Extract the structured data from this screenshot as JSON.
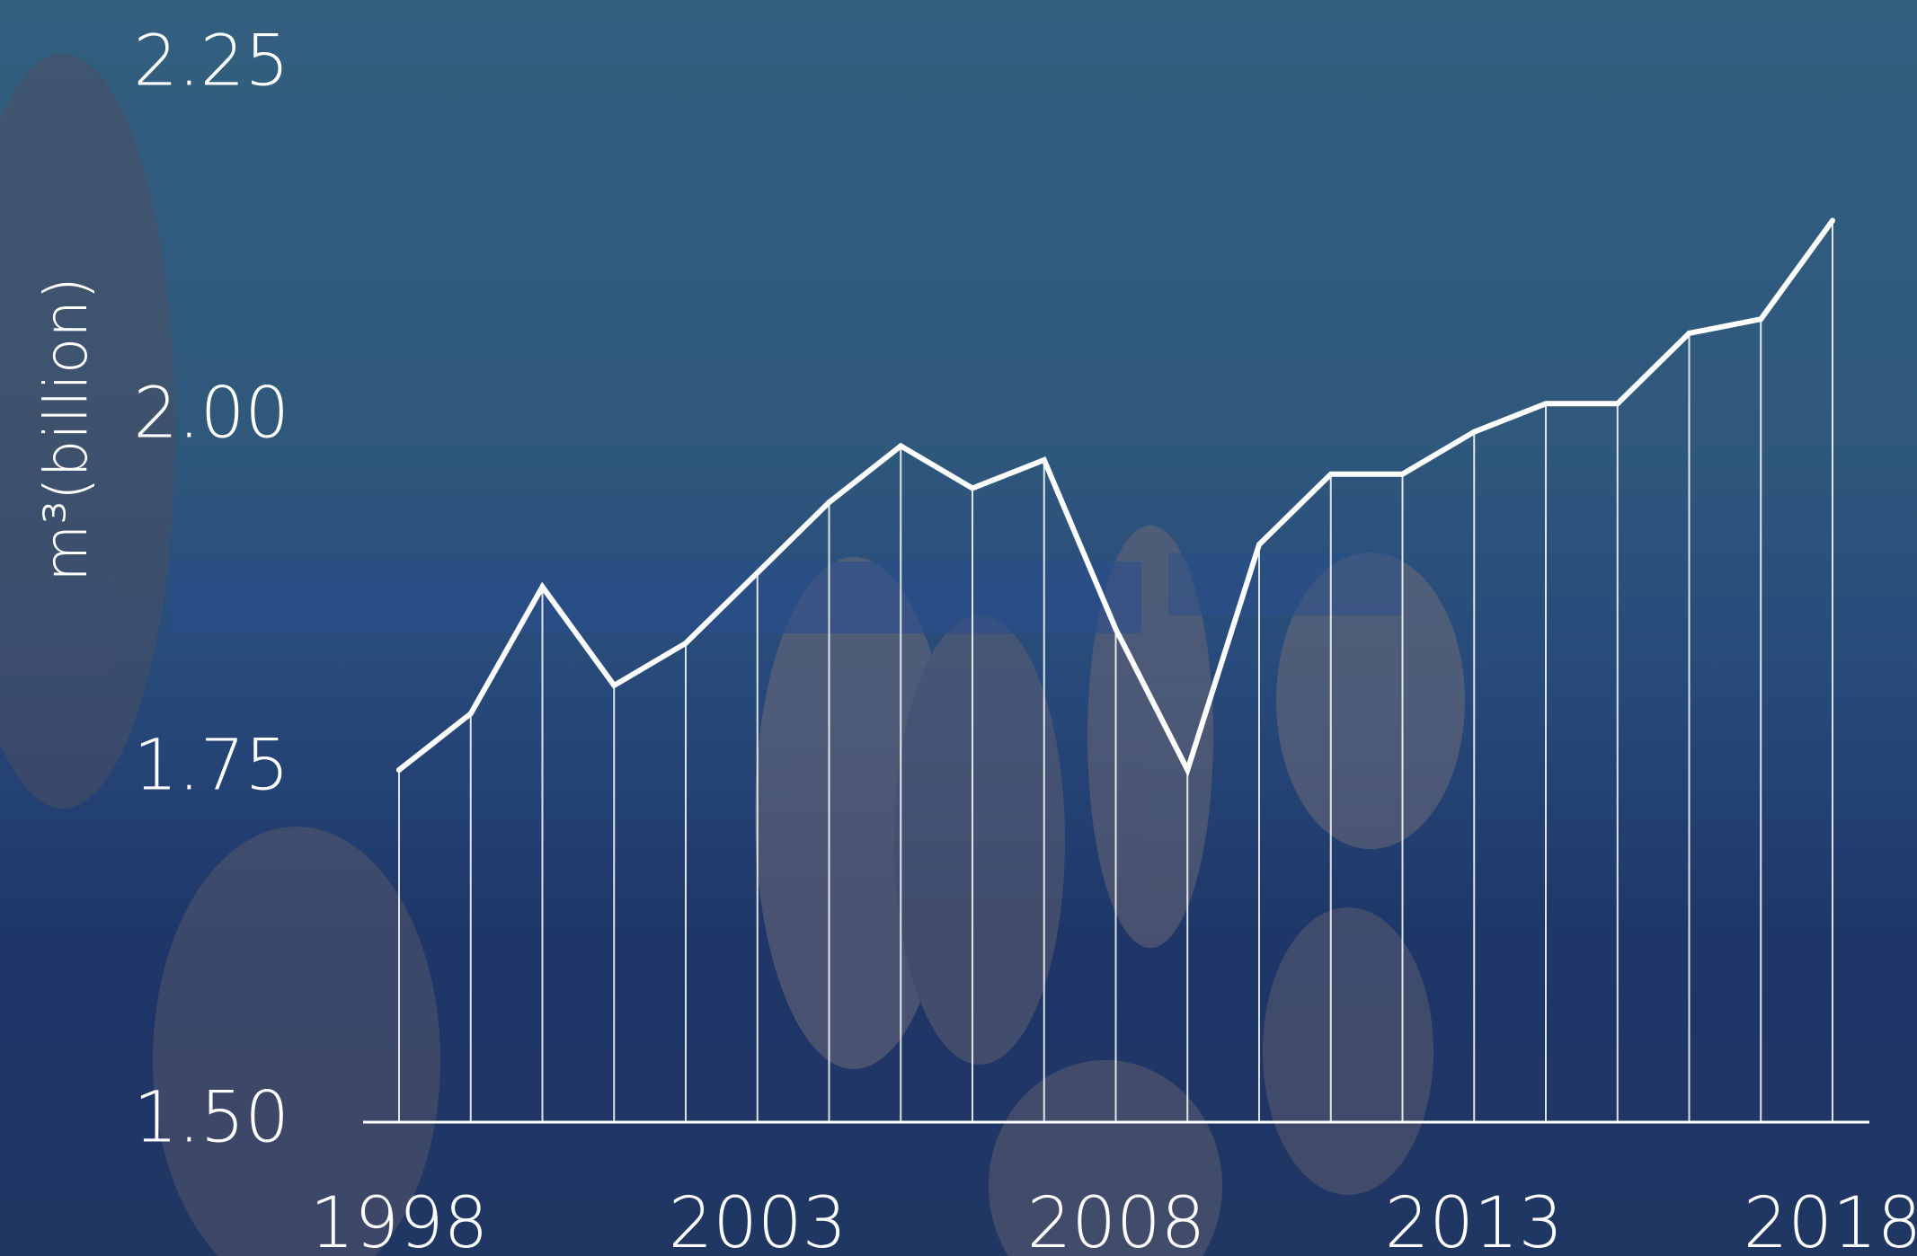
{
  "colors": {
    "line": "#ffffff",
    "background_top": "#335f7f",
    "background_bottom": "#1e3668"
  },
  "chart_data": {
    "type": "line",
    "title": "",
    "xlabel": "",
    "ylabel": "m³(billion)",
    "x": [
      1998,
      1999,
      2000,
      2001,
      2002,
      2003,
      2004,
      2005,
      2006,
      2007,
      2008,
      2009,
      2010,
      2011,
      2012,
      2013,
      2014,
      2015,
      2016,
      2017,
      2018
    ],
    "series": [
      {
        "name": "",
        "values": [
          1.75,
          1.79,
          1.88,
          1.81,
          1.84,
          1.89,
          1.94,
          1.98,
          1.95,
          1.97,
          1.85,
          1.75,
          1.91,
          1.96,
          1.96,
          1.99,
          2.01,
          2.01,
          2.06,
          2.07,
          2.14
        ]
      }
    ],
    "xticks": [
      "1998",
      "2003",
      "2008",
      "2013",
      "2018"
    ],
    "yticks": [
      "1.50",
      "1.75",
      "2.00",
      "2.25"
    ],
    "ylim": [
      1.5,
      2.25
    ],
    "xlim": [
      1998,
      2018
    ],
    "grid": false,
    "drop_lines": true,
    "background": "photo of snow-covered log pile with blue overlay"
  }
}
